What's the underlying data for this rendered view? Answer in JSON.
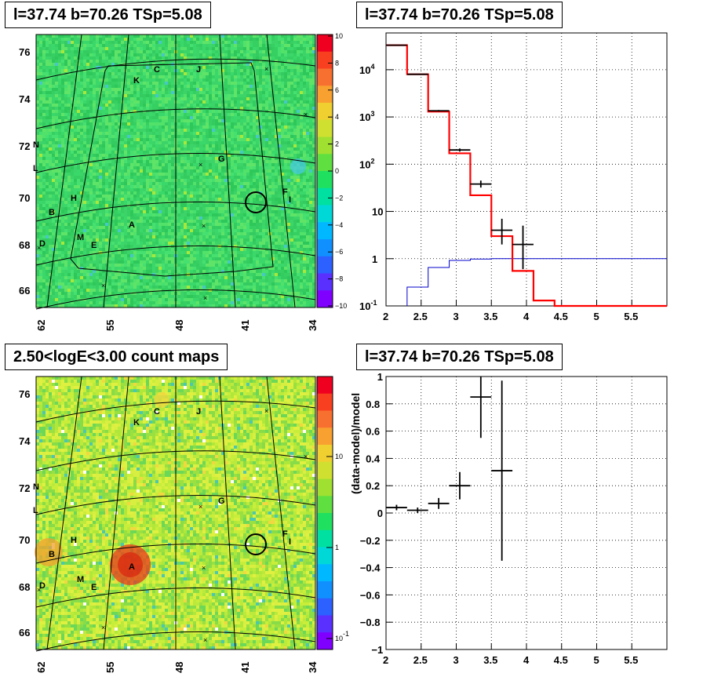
{
  "panels": {
    "map1_title": "l=37.74 b=70.26 TSp=5.08",
    "spec_title": "l=37.74 b=70.26 TSp=5.08",
    "map2_title": "2.50<logE<3.00 count maps",
    "resid_title": "l=37.74 b=70.26 TSp=5.08"
  },
  "colors": {
    "model": "#ff0000",
    "component": "#0000cc",
    "data": "#000000",
    "map_bg": "#3ad86a",
    "hot": "#e83a1e"
  },
  "chart_data": [
    {
      "type": "heatmap",
      "name": "significance-map",
      "title": "l=37.74 b=70.26 TSp=5.08",
      "x_ticks": [
        "62",
        "55",
        "48",
        "41",
        "34"
      ],
      "y_ticks": [
        "76",
        "74",
        "72",
        "70",
        "68",
        "66"
      ],
      "colorbar_ticks": [
        "10",
        "8",
        "6",
        "4",
        "2",
        "0",
        "−2",
        "−4",
        "−6",
        "−8",
        "−10"
      ],
      "colorbar_range": [
        -10,
        10
      ],
      "source_labels": [
        "C",
        "J",
        "K",
        "N",
        "L",
        "G",
        "F",
        "I",
        "H",
        "B",
        "A",
        "M",
        "E",
        "D"
      ]
    },
    {
      "type": "line",
      "name": "counts-spectrum",
      "title": "l=37.74 b=70.26 TSp=5.08",
      "yscale": "log",
      "xlim": [
        2,
        6
      ],
      "ylim": [
        0.1,
        60000
      ],
      "x_ticks": [
        "2",
        "2.5",
        "3",
        "3.5",
        "4",
        "4.5",
        "5",
        "5.5"
      ],
      "y_ticks": [
        "10^-1",
        "1",
        "10",
        "10^2",
        "10^3",
        "10^4"
      ],
      "model_steps": {
        "edges": [
          2.0,
          2.3,
          2.6,
          2.9,
          3.2,
          3.5,
          3.8,
          4.1,
          4.4,
          6.0
        ],
        "values": [
          33000,
          8000,
          1300,
          170,
          22,
          3.0,
          0.55,
          0.13,
          0.1
        ]
      },
      "component_steps": {
        "edges": [
          2.3,
          2.6,
          2.9,
          3.2,
          3.5,
          6.0
        ],
        "values": [
          0.25,
          0.65,
          0.92,
          0.98,
          1.0
        ]
      },
      "data_points": [
        {
          "x": 2.15,
          "y": 33000,
          "xerr": 0.15,
          "ylo": 32500,
          "yhi": 33500
        },
        {
          "x": 2.45,
          "y": 8000,
          "xerr": 0.15,
          "ylo": 7900,
          "yhi": 8100
        },
        {
          "x": 2.75,
          "y": 1350,
          "xerr": 0.15,
          "ylo": 1300,
          "yhi": 1400
        },
        {
          "x": 3.05,
          "y": 200,
          "xerr": 0.15,
          "ylo": 185,
          "yhi": 215
        },
        {
          "x": 3.35,
          "y": 38,
          "xerr": 0.15,
          "ylo": 32,
          "yhi": 45
        },
        {
          "x": 3.65,
          "y": 4.0,
          "xerr": 0.15,
          "ylo": 2.0,
          "yhi": 7.0
        },
        {
          "x": 3.95,
          "y": 2.0,
          "xerr": 0.15,
          "ylo": 0.6,
          "yhi": 5.0
        }
      ]
    },
    {
      "type": "heatmap",
      "name": "count-map",
      "title": "2.50<logE<3.00 count maps",
      "x_ticks": [
        "62",
        "55",
        "48",
        "41",
        "34"
      ],
      "y_ticks": [
        "76",
        "74",
        "72",
        "70",
        "68",
        "66"
      ],
      "colorbar_ticks": [
        "10",
        "1",
        "10^-1"
      ],
      "colorbar_scale": "log",
      "source_labels": [
        "C",
        "J",
        "K",
        "N",
        "L",
        "G",
        "F",
        "I",
        "H",
        "B",
        "A",
        "M",
        "E",
        "D"
      ]
    },
    {
      "type": "scatter",
      "name": "residuals",
      "title": "l=37.74 b=70.26 TSp=5.08",
      "ylabel": "(data-model)/model",
      "xlim": [
        2,
        6
      ],
      "ylim": [
        -1,
        1
      ],
      "x_ticks": [
        "2",
        "2.5",
        "3",
        "3.5",
        "4",
        "4.5",
        "5",
        "5.5"
      ],
      "y_ticks": [
        "−1",
        "−0.8",
        "−0.6",
        "−0.4",
        "−0.2",
        "0",
        "0.2",
        "0.4",
        "0.6",
        "0.8",
        "1"
      ],
      "data_points": [
        {
          "x": 2.15,
          "y": 0.04,
          "xerr": 0.15,
          "yerr": 0.02
        },
        {
          "x": 2.45,
          "y": 0.02,
          "xerr": 0.15,
          "yerr": 0.02
        },
        {
          "x": 2.75,
          "y": 0.07,
          "xerr": 0.15,
          "yerr": 0.04
        },
        {
          "x": 3.05,
          "y": 0.2,
          "xerr": 0.15,
          "yerr": 0.1
        },
        {
          "x": 3.35,
          "y": 0.85,
          "xerr": 0.15,
          "yerr": 0.3
        },
        {
          "x": 3.65,
          "y": 0.31,
          "xerr": 0.15,
          "yerr": 0.66
        }
      ]
    }
  ]
}
